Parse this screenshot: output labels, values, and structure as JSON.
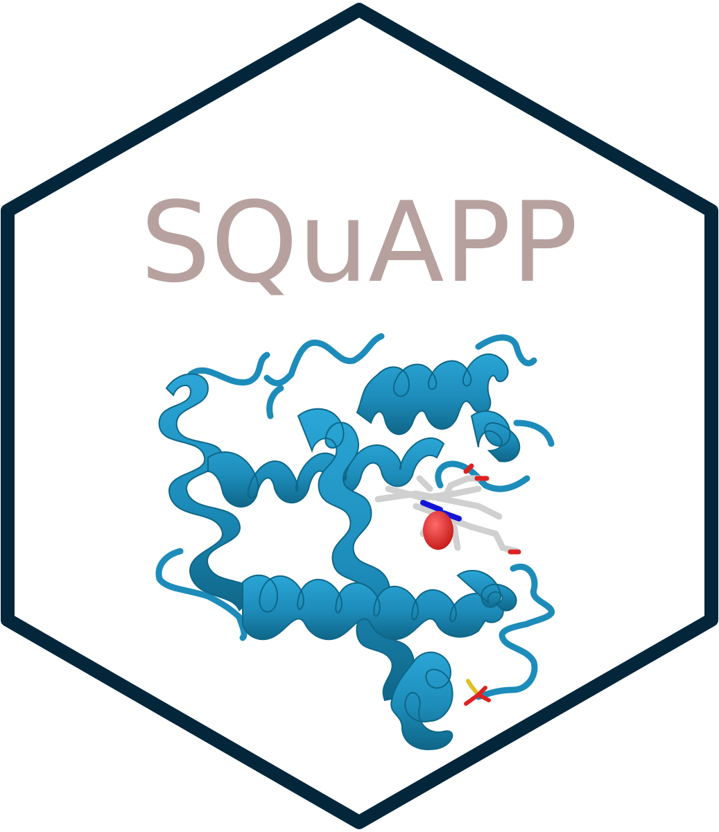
{
  "logo": {
    "title": "SQuAPP",
    "colors": {
      "hex_border": "#03263a",
      "hex_fill": "#ffffff",
      "title": "#b7a19f",
      "ribbon": "#1d8cba",
      "ribbon_light": "#2aa6d6",
      "ribbon_dark": "#0f6688",
      "ligand_carbon": "#d0d0d0",
      "ligand_nitrogen": "#1414d8",
      "ligand_oxygen": "#dd2222",
      "sulfate_sulfur": "#e0c020"
    },
    "icons": [
      "protein-ribbon-icon",
      "heme-ligand-icon",
      "sulfate-icon"
    ]
  }
}
